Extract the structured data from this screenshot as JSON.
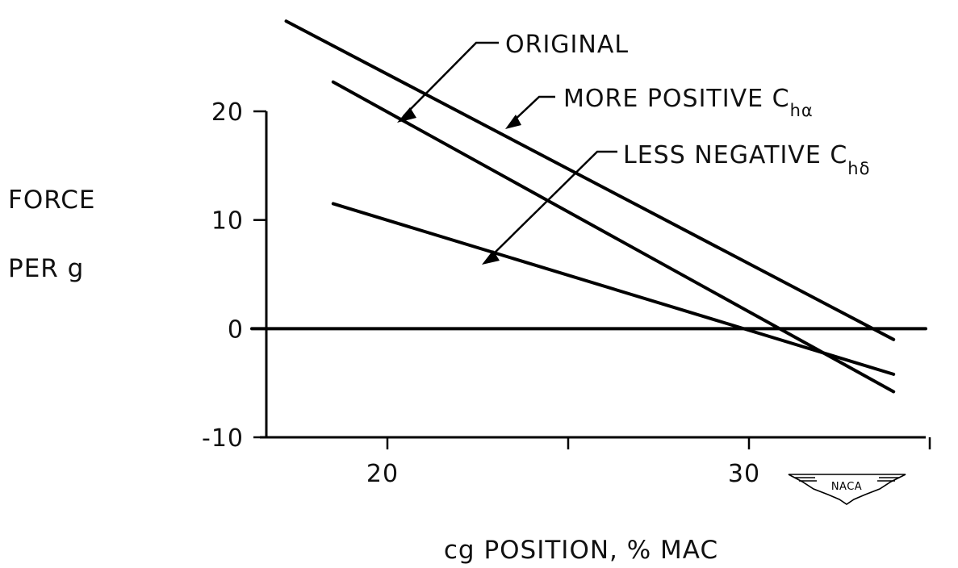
{
  "chart_data": {
    "type": "line",
    "xlabel": "cg POSITION, % MAC",
    "ylabel_line1": "FORCE",
    "ylabel_line2": "PER g",
    "xlim": [
      16,
      35
    ],
    "ylim": [
      -10,
      20
    ],
    "x_ticks": [
      20,
      25,
      30,
      35
    ],
    "x_tick_labels": [
      "20",
      "",
      "30",
      ""
    ],
    "y_ticks": [
      -10,
      0,
      10,
      20
    ],
    "y_tick_labels": [
      "-10",
      "0",
      "10",
      "20"
    ],
    "grid": false,
    "legend": "none",
    "reference_line": {
      "y": 0
    },
    "series": [
      {
        "name": "ORIGINAL",
        "annotation": "ORIGINAL",
        "annotation_subscript": "",
        "points": [
          [
            18.5,
            22.7
          ],
          [
            34.0,
            -5.8
          ]
        ]
      },
      {
        "name": "MORE POSITIVE C",
        "annotation": "MORE POSITIVE C",
        "annotation_subscript": "hα",
        "points": [
          [
            17.2,
            28.3
          ],
          [
            34.0,
            -1.0
          ]
        ]
      },
      {
        "name": "LESS NEGATIVE C",
        "annotation": "LESS NEGATIVE C",
        "annotation_subscript": "hδ",
        "points": [
          [
            18.5,
            11.5
          ],
          [
            34.0,
            -4.2
          ]
        ]
      }
    ]
  },
  "logo": {
    "text": "NACA"
  }
}
